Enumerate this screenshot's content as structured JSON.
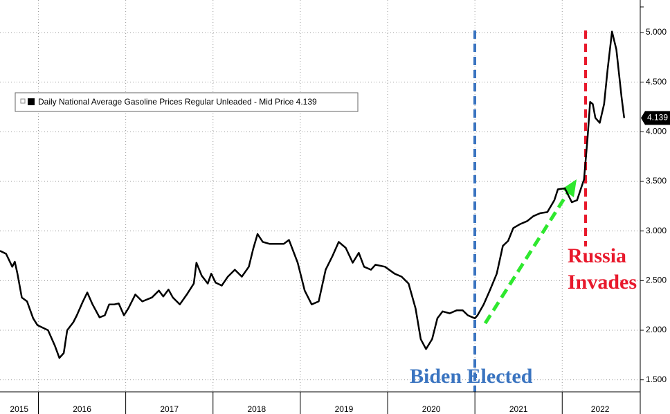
{
  "chart_data": {
    "type": "line",
    "x": [
      2015.56,
      2015.63,
      2015.7,
      2015.73,
      2015.76,
      2015.81,
      2015.87,
      2015.94,
      2015.99,
      2016.11,
      2016.19,
      2016.24,
      2016.29,
      2016.33,
      2016.4,
      2016.44,
      2016.51,
      2016.56,
      2016.62,
      2016.7,
      2016.76,
      2016.81,
      2016.87,
      2016.92,
      2016.98,
      2017.03,
      2017.11,
      2017.19,
      2017.3,
      2017.38,
      2017.43,
      2017.49,
      2017.54,
      2017.62,
      2017.7,
      2017.78,
      2017.81,
      2017.87,
      2017.94,
      2017.98,
      2018.03,
      2018.1,
      2018.17,
      2018.25,
      2018.33,
      2018.41,
      2018.46,
      2018.51,
      2018.57,
      2018.65,
      2018.73,
      2018.81,
      2018.87,
      2018.97,
      2019.05,
      2019.13,
      2019.21,
      2019.29,
      2019.37,
      2019.44,
      2019.52,
      2019.6,
      2019.67,
      2019.73,
      2019.81,
      2019.86,
      2019.97,
      2020.08,
      2020.16,
      2020.24,
      2020.32,
      2020.38,
      2020.44,
      2020.51,
      2020.57,
      2020.63,
      2020.71,
      2020.79,
      2020.86,
      2020.92,
      2021.0,
      2021.03,
      2021.1,
      2021.17,
      2021.25,
      2021.32,
      2021.38,
      2021.44,
      2021.52,
      2021.6,
      2021.67,
      2021.75,
      2021.83,
      2021.91,
      2021.95,
      2022.03,
      2022.11,
      2022.17,
      2022.25,
      2022.29,
      2022.32,
      2022.35,
      2022.38,
      2022.43,
      2022.48,
      2022.52,
      2022.57,
      2022.62,
      2022.68,
      2022.71
    ],
    "series": [
      {
        "name": "Daily National Average Gasoline Prices Regular Unleaded - Mid Price",
        "color": "#000000",
        "values": [
          2.8,
          2.77,
          2.64,
          2.69,
          2.57,
          2.33,
          2.29,
          2.12,
          2.05,
          2.0,
          1.84,
          1.72,
          1.77,
          2.0,
          2.08,
          2.15,
          2.29,
          2.38,
          2.26,
          2.13,
          2.15,
          2.26,
          2.26,
          2.27,
          2.15,
          2.22,
          2.36,
          2.29,
          2.33,
          2.4,
          2.34,
          2.41,
          2.33,
          2.26,
          2.36,
          2.47,
          2.68,
          2.55,
          2.47,
          2.57,
          2.48,
          2.45,
          2.54,
          2.61,
          2.54,
          2.64,
          2.82,
          2.97,
          2.89,
          2.87,
          2.87,
          2.87,
          2.91,
          2.68,
          2.4,
          2.26,
          2.29,
          2.61,
          2.75,
          2.89,
          2.83,
          2.68,
          2.78,
          2.64,
          2.61,
          2.66,
          2.64,
          2.57,
          2.54,
          2.47,
          2.22,
          1.91,
          1.81,
          1.91,
          2.12,
          2.19,
          2.17,
          2.2,
          2.2,
          2.15,
          2.12,
          2.15,
          2.26,
          2.4,
          2.57,
          2.85,
          2.9,
          3.03,
          3.07,
          3.1,
          3.15,
          3.18,
          3.19,
          3.31,
          3.42,
          3.43,
          3.29,
          3.31,
          3.52,
          3.93,
          4.3,
          4.28,
          4.14,
          4.09,
          4.28,
          4.63,
          5.01,
          4.83,
          4.35,
          4.139
        ]
      }
    ],
    "xlim": [
      2015.56,
      2022.87
    ],
    "xticks": [
      {
        "value": 2015,
        "label": "2015"
      },
      {
        "value": 2016,
        "label": "2016"
      },
      {
        "value": 2017,
        "label": "2017"
      },
      {
        "value": 2018,
        "label": "2018"
      },
      {
        "value": 2019,
        "label": "2019"
      },
      {
        "value": 2020,
        "label": "2020"
      },
      {
        "value": 2021,
        "label": "2021"
      },
      {
        "value": 2022,
        "label": "2022"
      }
    ],
    "ylim": [
      1.4,
      5.3
    ],
    "yticks": [
      {
        "value": 1.5,
        "label": "1.500"
      },
      {
        "value": 2,
        "label": "2.000"
      },
      {
        "value": 2.5,
        "label": "2.500"
      },
      {
        "value": 3,
        "label": "3.000"
      },
      {
        "value": 3.5,
        "label": "3.500"
      },
      {
        "value": 4,
        "label": "4.000"
      },
      {
        "value": 4.5,
        "label": "4.500"
      },
      {
        "value": 5,
        "label": "5.000"
      }
    ],
    "grid": true,
    "annotations": [
      "Biden Elected",
      "Russia",
      "Invades"
    ]
  }
}
